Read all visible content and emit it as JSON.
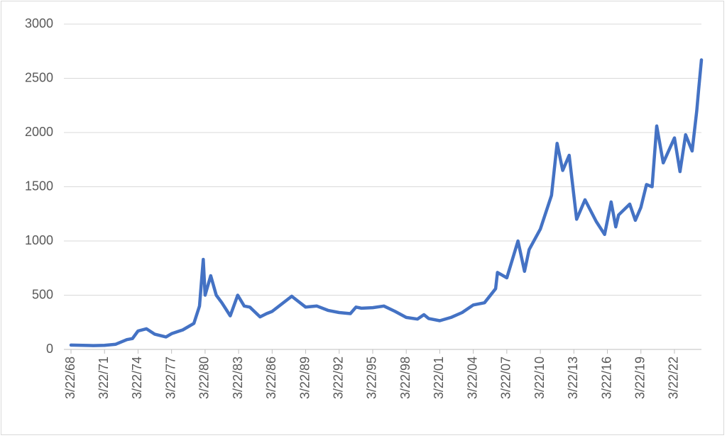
{
  "chart_data": {
    "type": "line",
    "x": [
      "3/22/68",
      "3/22/70",
      "3/22/71",
      "3/22/72",
      "3/22/73",
      "9/22/73",
      "3/22/74",
      "12/22/74",
      "9/22/75",
      "9/22/76",
      "3/22/77",
      "3/22/78",
      "3/22/79",
      "9/22/79",
      "1/22/80",
      "3/22/80",
      "9/22/80",
      "3/22/81",
      "9/22/81",
      "6/22/82",
      "2/22/83",
      "9/22/83",
      "3/22/84",
      "2/22/85",
      "9/22/85",
      "3/22/86",
      "12/22/87",
      "6/22/88",
      "3/22/89",
      "3/22/90",
      "3/22/91",
      "3/22/92",
      "3/22/93",
      "9/22/93",
      "3/22/94",
      "3/22/95",
      "3/22/96",
      "3/22/97",
      "3/22/98",
      "3/22/99",
      "10/22/99",
      "3/22/00",
      "3/22/01",
      "3/22/02",
      "3/22/03",
      "3/22/04",
      "3/22/05",
      "3/22/06",
      "5/22/06",
      "3/22/07",
      "3/22/08",
      "10/22/08",
      "3/22/09",
      "3/22/10",
      "3/22/11",
      "9/22/11",
      "3/22/12",
      "10/22/12",
      "6/22/13",
      "3/22/14",
      "3/22/15",
      "12/22/15",
      "7/22/16",
      "12/22/16",
      "3/22/17",
      "3/22/18",
      "9/22/18",
      "3/22/19",
      "9/22/19",
      "3/22/20",
      "8/22/20",
      "3/22/21",
      "3/22/22",
      "9/22/22",
      "3/22/23",
      "10/22/23",
      "3/22/24",
      "5/22/24",
      "8/22/24"
    ],
    "series": [
      {
        "color": "#4472c4",
        "values": [
          40,
          35,
          38,
          48,
          90,
          100,
          170,
          190,
          140,
          115,
          145,
          180,
          240,
          400,
          830,
          500,
          680,
          500,
          430,
          310,
          500,
          400,
          390,
          300,
          330,
          350,
          490,
          450,
          390,
          400,
          360,
          340,
          330,
          390,
          380,
          385,
          400,
          350,
          295,
          280,
          320,
          285,
          265,
          295,
          340,
          410,
          430,
          560,
          710,
          660,
          1000,
          720,
          920,
          1110,
          1420,
          1900,
          1650,
          1790,
          1200,
          1380,
          1180,
          1060,
          1360,
          1130,
          1240,
          1340,
          1190,
          1310,
          1520,
          1500,
          2060,
          1720,
          1950,
          1640,
          1980,
          1830,
          2200,
          2400,
          2670
        ]
      }
    ],
    "xlim": [
      "3/22/68",
      "8/22/24"
    ],
    "xticks": [
      "3/22/68",
      "3/22/71",
      "3/22/74",
      "3/22/77",
      "3/22/80",
      "3/22/83",
      "3/22/86",
      "3/22/89",
      "3/22/92",
      "3/22/95",
      "3/22/98",
      "3/22/01",
      "3/22/04",
      "3/22/07",
      "3/22/10",
      "3/22/13",
      "3/22/16",
      "3/22/19",
      "3/22/22"
    ],
    "ylim": [
      0,
      3000
    ],
    "yticks": [
      0,
      500,
      1000,
      1500,
      2000,
      2500,
      3000
    ],
    "grid": true
  }
}
